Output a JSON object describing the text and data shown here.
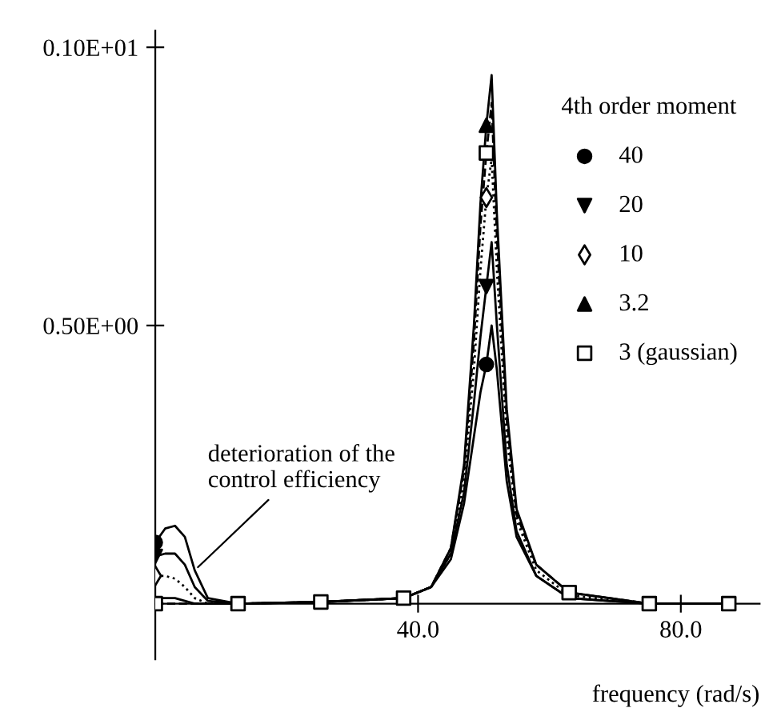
{
  "chart_data": {
    "type": "line",
    "xlabel": "frequency (rad/s)",
    "legend_title": "4th order moment",
    "legend": "top right",
    "grid": false,
    "xlim": [
      0,
      92
    ],
    "ylim": [
      -0.1,
      1.03
    ],
    "xticks": [
      {
        "value": 40,
        "label": "40.0"
      },
      {
        "value": 80,
        "label": "80.0"
      }
    ],
    "yticks": [
      {
        "value": 0.5,
        "label": "0.50E+00"
      },
      {
        "value": 1.0,
        "label": "0.10E+01"
      }
    ],
    "annotations": [
      {
        "text": "deterioration of the\ncontrol efficiency",
        "x": 6,
        "y": 0.06
      }
    ],
    "series": [
      {
        "color": "#000000",
        "line_style": "solid",
        "x": [
          0,
          1.5,
          3,
          4.5,
          6,
          8,
          12.6,
          25.2,
          37.8,
          42,
          45,
          47,
          48.5,
          49.5,
          50.4,
          51.2,
          52,
          53.5,
          55,
          58,
          63,
          75.2,
          87.3
        ],
        "values": [
          0.11,
          0.135,
          0.14,
          0.12,
          0.06,
          0.01,
          0.0,
          0.003,
          0.01,
          0.03,
          0.08,
          0.18,
          0.3,
          0.38,
          0.43,
          0.5,
          0.42,
          0.22,
          0.12,
          0.05,
          0.01,
          0.0,
          0.0
        ]
      },
      {
        "color": "#000000",
        "line_style": "solid",
        "x": [
          0,
          1.5,
          3,
          4.5,
          6,
          8,
          12.6,
          25.2,
          37.8,
          42,
          45,
          47,
          48.5,
          49.5,
          50.4,
          51.2,
          52,
          53.5,
          55,
          58,
          63,
          75.2,
          87.3
        ],
        "values": [
          0.085,
          0.09,
          0.09,
          0.07,
          0.03,
          0.005,
          0.0,
          0.003,
          0.01,
          0.03,
          0.09,
          0.2,
          0.36,
          0.48,
          0.57,
          0.65,
          0.5,
          0.25,
          0.13,
          0.05,
          0.01,
          0.0,
          0.0
        ]
      },
      {
        "color": "#000000",
        "line_style": "dotted",
        "x": [
          0,
          1.5,
          3,
          4.5,
          6,
          8,
          12.6,
          25.2,
          37.8,
          42,
          45,
          47,
          48.5,
          49.5,
          50.4,
          51.2,
          52,
          53.5,
          55,
          58,
          63,
          75.2,
          87.3
        ],
        "values": [
          0.05,
          0.05,
          0.045,
          0.03,
          0.01,
          0.0,
          0.0,
          0.003,
          0.01,
          0.03,
          0.09,
          0.22,
          0.42,
          0.6,
          0.73,
          0.8,
          0.6,
          0.3,
          0.15,
          0.06,
          0.015,
          0.0,
          0.0
        ]
      },
      {
        "color": "#000000",
        "line_style": "solid",
        "x": [
          0,
          1.5,
          3,
          4.5,
          6,
          8,
          12.6,
          25.2,
          37.8,
          42,
          45,
          47,
          48.5,
          49.5,
          50.4,
          51.2,
          52,
          53.5,
          55,
          58,
          63,
          75.2,
          87.3
        ],
        "values": [
          0.01,
          0.01,
          0.01,
          0.005,
          0.0,
          0.0,
          0.0,
          0.003,
          0.01,
          0.03,
          0.1,
          0.25,
          0.5,
          0.72,
          0.86,
          0.95,
          0.7,
          0.35,
          0.17,
          0.07,
          0.02,
          0.0,
          0.0
        ]
      },
      {
        "color": "#000000",
        "line_style": "dashed",
        "x": [
          0,
          1.5,
          3,
          4.5,
          6,
          8,
          12.6,
          25.2,
          37.8,
          42,
          45,
          47,
          48.5,
          49.5,
          50.4,
          51.2,
          52,
          53.5,
          55,
          58,
          63,
          75.2,
          87.3
        ],
        "values": [
          0.0,
          0.0,
          0.0,
          0.0,
          0.0,
          0.0,
          0.0,
          0.003,
          0.01,
          0.03,
          0.1,
          0.24,
          0.47,
          0.68,
          0.81,
          0.9,
          0.66,
          0.33,
          0.16,
          0.07,
          0.02,
          0.0,
          0.0
        ]
      },
      {
        "type": "scatter",
        "name": "40",
        "color": "#000000",
        "marker": "circle",
        "x": [
          0,
          50.4
        ],
        "values": [
          0.11,
          0.43
        ]
      },
      {
        "type": "scatter",
        "name": "20",
        "color": "#000000",
        "marker": "triangle_down",
        "x": [
          0,
          50.4
        ],
        "values": [
          0.085,
          0.57
        ]
      },
      {
        "type": "scatter",
        "name": "10",
        "color": "#000000",
        "marker": "diamond",
        "x": [
          0,
          50.4
        ],
        "values": [
          0.05,
          0.73
        ]
      },
      {
        "type": "scatter",
        "name": "3.2",
        "color": "#000000",
        "marker": "triangle",
        "x": [
          50.4
        ],
        "values": [
          0.86
        ]
      },
      {
        "type": "scatter",
        "name": "3 (gaussian)",
        "color": "#000000",
        "marker": "square",
        "x": [
          0,
          12.6,
          25.2,
          37.8,
          50.4,
          63,
          75.2,
          87.3
        ],
        "values": [
          0.0,
          0.0,
          0.003,
          0.01,
          0.81,
          0.02,
          0.0,
          0.0
        ]
      }
    ]
  }
}
